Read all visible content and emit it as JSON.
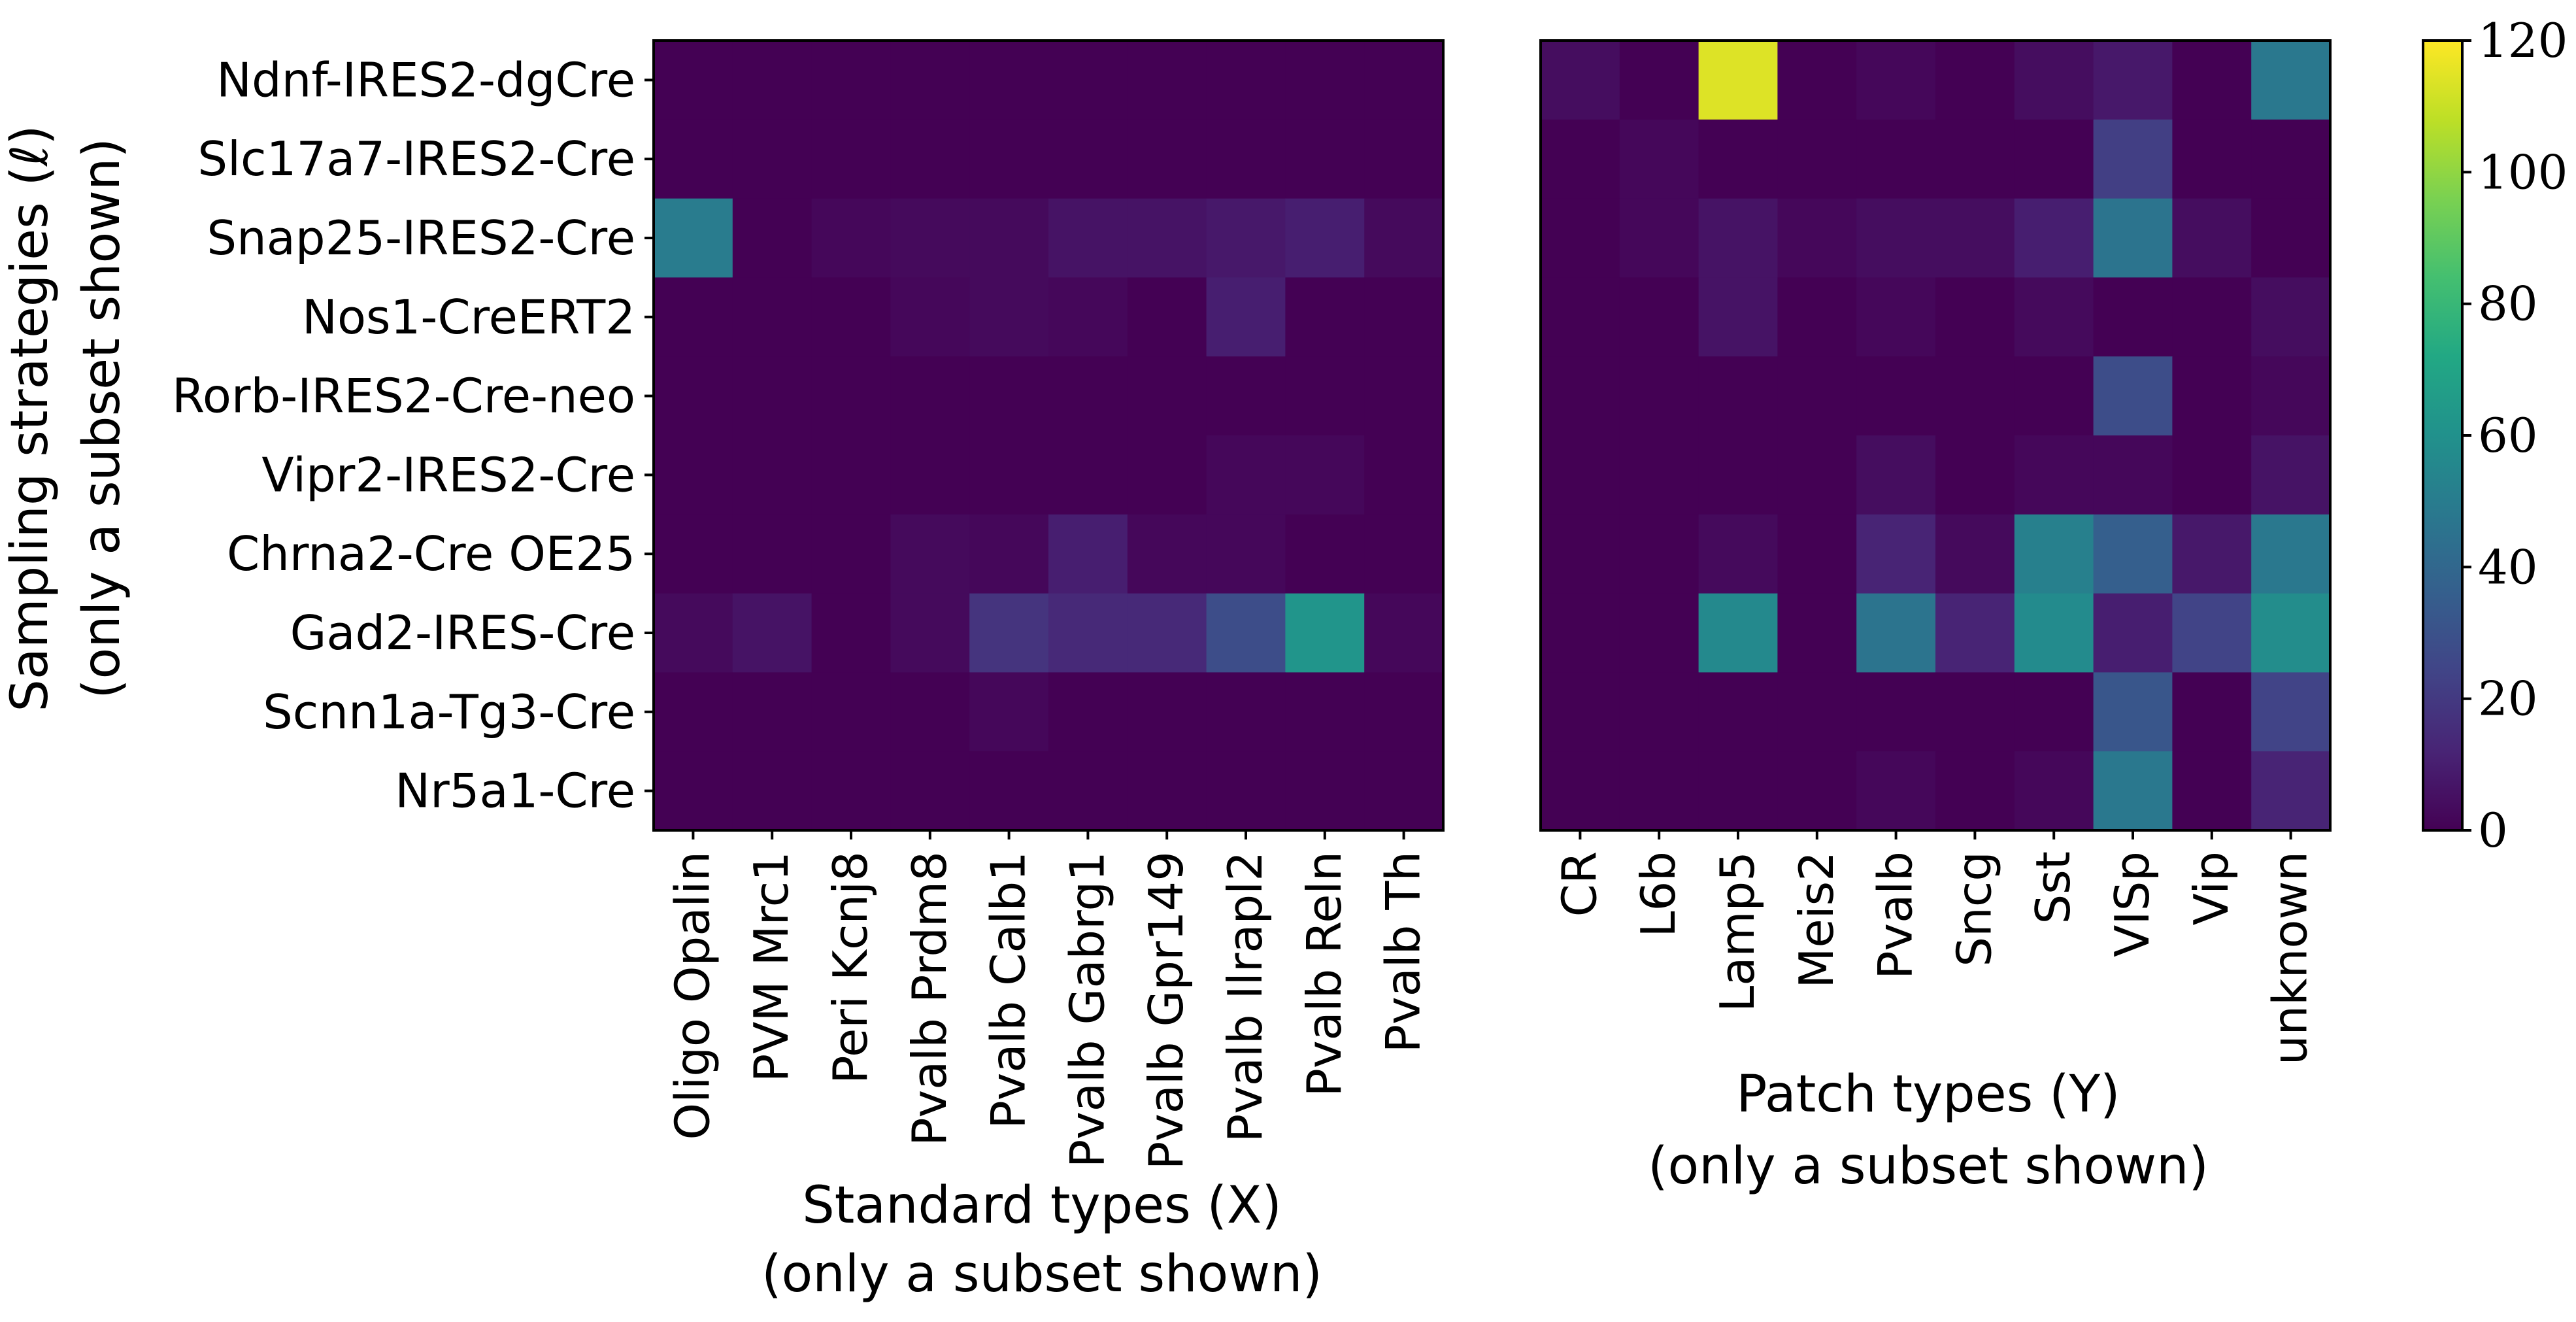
{
  "chart_data": {
    "type": "heatmap",
    "y_categories": [
      "Ndnf-IRES2-dgCre",
      "Slc17a7-IRES2-Cre",
      "Snap25-IRES2-Cre",
      "Nos1-CreERT2",
      "Rorb-IRES2-Cre-neo",
      "Vipr2-IRES2-Cre",
      "Chrna2-Cre OE25",
      "Gad2-IRES-Cre",
      "Scnn1a-Tg3-Cre",
      "Nr5a1-Cre"
    ],
    "ylabel_line1": "Sampling strategies (ℓ)",
    "ylabel_line2": "(only a subset shown)",
    "colormap": "viridis",
    "color_range": [
      0,
      120
    ],
    "colorbar_ticks": [
      "0",
      "20",
      "40",
      "60",
      "80",
      "100",
      "120"
    ],
    "panels": [
      {
        "xlabel_line1": "Standard types (X)",
        "xlabel_line2": "(only a subset shown)",
        "x_categories": [
          "Oligo Opalin",
          "PVM Mrc1",
          "Peri Kcnj8",
          "Pvalb Prdm8",
          "Pvalb Calb1",
          "Pvalb Gabrg1",
          "Pvalb Gpr149",
          "Pvalb Ilrapl2",
          "Pvalb Reln",
          "Pvalb Th"
        ],
        "values": [
          [
            0,
            0,
            0,
            0,
            0,
            0,
            0,
            0,
            0,
            0
          ],
          [
            0,
            0,
            0,
            0,
            0,
            0,
            0,
            0,
            0,
            0
          ],
          [
            50,
            0,
            2,
            3,
            3,
            6,
            6,
            8,
            10,
            3
          ],
          [
            0,
            0,
            0,
            2,
            3,
            2,
            0,
            10,
            0,
            0
          ],
          [
            0,
            0,
            0,
            0,
            0,
            0,
            0,
            0,
            0,
            0
          ],
          [
            0,
            0,
            0,
            0,
            0,
            0,
            0,
            2,
            2,
            0
          ],
          [
            0,
            0,
            0,
            3,
            2,
            10,
            2,
            2,
            0,
            0
          ],
          [
            3,
            6,
            0,
            3,
            18,
            14,
            14,
            28,
            62,
            2
          ],
          [
            0,
            0,
            0,
            0,
            2,
            0,
            0,
            0,
            0,
            0
          ],
          [
            0,
            0,
            0,
            0,
            0,
            0,
            0,
            0,
            0,
            0
          ]
        ]
      },
      {
        "xlabel_line1": "Patch types (Y)",
        "xlabel_line2": "(only a subset shown)",
        "x_categories": [
          "CR",
          "L6b",
          "Lamp5",
          "Meis2",
          "Pvalb",
          "Sncg",
          "Sst",
          "VISp",
          "Vip",
          "unknown"
        ],
        "values": [
          [
            4,
            0,
            114,
            0,
            2,
            0,
            4,
            8,
            0,
            48
          ],
          [
            0,
            2,
            0,
            0,
            0,
            0,
            0,
            22,
            0,
            0
          ],
          [
            0,
            2,
            6,
            2,
            4,
            4,
            10,
            46,
            4,
            0
          ],
          [
            0,
            0,
            6,
            0,
            2,
            0,
            3,
            0,
            0,
            4
          ],
          [
            0,
            0,
            0,
            0,
            0,
            0,
            0,
            28,
            0,
            2
          ],
          [
            0,
            0,
            0,
            0,
            4,
            0,
            2,
            2,
            0,
            6
          ],
          [
            0,
            0,
            3,
            0,
            12,
            3,
            52,
            36,
            8,
            48
          ],
          [
            0,
            0,
            56,
            0,
            46,
            12,
            57,
            10,
            24,
            58
          ],
          [
            0,
            0,
            0,
            0,
            0,
            0,
            0,
            32,
            0,
            24
          ],
          [
            0,
            0,
            0,
            0,
            2,
            0,
            2,
            48,
            0,
            12
          ]
        ]
      }
    ]
  }
}
